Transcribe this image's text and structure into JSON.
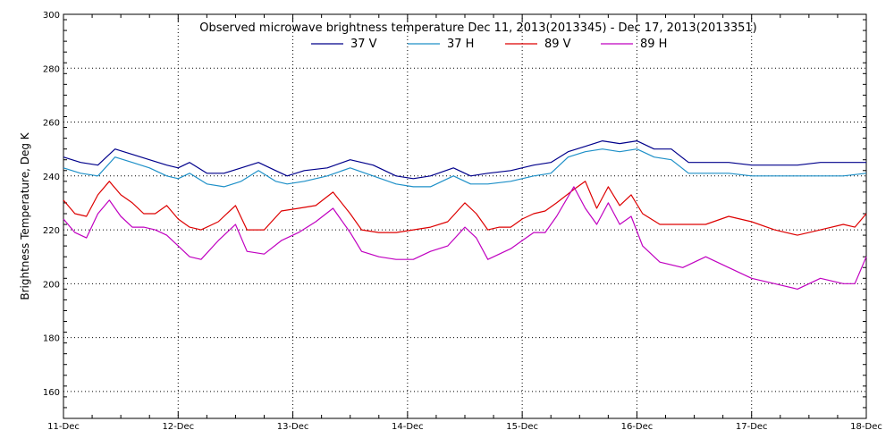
{
  "chart_data": {
    "type": "line",
    "title": "Observed microwave brightness temperature Dec 11, 2013(2013345) - Dec 17, 2013(2013351)",
    "ylabel": "Brightness Temperature, Deg K",
    "xlabel": "",
    "ylim": [
      150,
      300
    ],
    "y_ticks": [
      160,
      180,
      200,
      220,
      240,
      260,
      280,
      300
    ],
    "x_tick_labels": [
      "11-Dec",
      "12-Dec",
      "13-Dec",
      "14-Dec",
      "15-Dec",
      "16-Dec",
      "17-Dec",
      "18-Dec"
    ],
    "xlim": [
      0,
      7
    ],
    "grid": true,
    "legend_placement": "top-center",
    "series": [
      {
        "name": "37 V",
        "color": "#00008b",
        "x": [
          0,
          0.15,
          0.3,
          0.45,
          0.6,
          0.75,
          0.9,
          1.0,
          1.1,
          1.25,
          1.4,
          1.55,
          1.7,
          1.85,
          1.95,
          2.1,
          2.3,
          2.5,
          2.7,
          2.9,
          3.05,
          3.2,
          3.4,
          3.55,
          3.7,
          3.9,
          4.1,
          4.25,
          4.4,
          4.55,
          4.7,
          4.85,
          5.0,
          5.15,
          5.3,
          5.45,
          5.6,
          5.8,
          6.0,
          6.2,
          6.4,
          6.6,
          6.8,
          7.0
        ],
        "values": [
          247,
          245,
          244,
          250,
          248,
          246,
          244,
          243,
          245,
          241,
          241,
          243,
          245,
          242,
          240,
          242,
          243,
          246,
          244,
          240,
          239,
          240,
          243,
          240,
          241,
          242,
          244,
          245,
          249,
          251,
          253,
          252,
          253,
          250,
          250,
          245,
          245,
          245,
          244,
          244,
          244,
          245,
          245,
          245
        ]
      },
      {
        "name": "37 H",
        "color": "#1e90c8",
        "x": [
          0,
          0.15,
          0.3,
          0.45,
          0.6,
          0.75,
          0.9,
          1.0,
          1.1,
          1.25,
          1.4,
          1.55,
          1.7,
          1.85,
          1.95,
          2.1,
          2.3,
          2.5,
          2.7,
          2.9,
          3.05,
          3.2,
          3.4,
          3.55,
          3.7,
          3.9,
          4.1,
          4.25,
          4.4,
          4.55,
          4.7,
          4.85,
          5.0,
          5.15,
          5.3,
          5.45,
          5.6,
          5.8,
          6.0,
          6.2,
          6.4,
          6.6,
          6.8,
          7.0
        ],
        "values": [
          243,
          241,
          240,
          247,
          245,
          243,
          240,
          239,
          241,
          237,
          236,
          238,
          242,
          238,
          237,
          238,
          240,
          243,
          240,
          237,
          236,
          236,
          240,
          237,
          237,
          238,
          240,
          241,
          247,
          249,
          250,
          249,
          250,
          247,
          246,
          241,
          241,
          241,
          240,
          240,
          240,
          240,
          240,
          241
        ]
      },
      {
        "name": "89 V",
        "color": "#dd0000",
        "x": [
          0,
          0.1,
          0.2,
          0.3,
          0.4,
          0.5,
          0.6,
          0.7,
          0.8,
          0.9,
          1.0,
          1.1,
          1.2,
          1.35,
          1.5,
          1.6,
          1.75,
          1.9,
          2.05,
          2.2,
          2.35,
          2.5,
          2.6,
          2.75,
          2.9,
          3.05,
          3.2,
          3.35,
          3.5,
          3.6,
          3.7,
          3.8,
          3.9,
          4.0,
          4.1,
          4.2,
          4.3,
          4.45,
          4.55,
          4.65,
          4.75,
          4.85,
          4.95,
          5.05,
          5.2,
          5.4,
          5.6,
          5.8,
          6.0,
          6.2,
          6.4,
          6.6,
          6.8,
          6.9,
          7.0
        ],
        "values": [
          231,
          226,
          225,
          233,
          238,
          233,
          230,
          226,
          226,
          229,
          224,
          221,
          220,
          223,
          229,
          220,
          220,
          227,
          228,
          229,
          234,
          226,
          220,
          219,
          219,
          220,
          221,
          223,
          230,
          226,
          220,
          221,
          221,
          224,
          226,
          227,
          230,
          235,
          238,
          228,
          236,
          229,
          233,
          226,
          222,
          222,
          222,
          225,
          223,
          220,
          218,
          220,
          222,
          221,
          226
        ]
      },
      {
        "name": "89 H",
        "color": "#c000c0",
        "x": [
          0,
          0.1,
          0.2,
          0.3,
          0.4,
          0.5,
          0.6,
          0.7,
          0.8,
          0.9,
          1.0,
          1.1,
          1.2,
          1.35,
          1.5,
          1.6,
          1.75,
          1.9,
          2.05,
          2.2,
          2.35,
          2.5,
          2.6,
          2.75,
          2.9,
          3.05,
          3.2,
          3.35,
          3.5,
          3.6,
          3.7,
          3.8,
          3.9,
          4.0,
          4.1,
          4.2,
          4.3,
          4.45,
          4.55,
          4.65,
          4.75,
          4.85,
          4.95,
          5.05,
          5.2,
          5.4,
          5.6,
          5.8,
          6.0,
          6.2,
          6.4,
          6.6,
          6.8,
          6.9,
          7.0
        ],
        "values": [
          224,
          219,
          217,
          226,
          231,
          225,
          221,
          221,
          220,
          218,
          214,
          210,
          209,
          216,
          222,
          212,
          211,
          216,
          219,
          223,
          228,
          219,
          212,
          210,
          209,
          209,
          212,
          214,
          221,
          217,
          209,
          211,
          213,
          216,
          219,
          219,
          225,
          236,
          228,
          222,
          230,
          222,
          225,
          214,
          208,
          206,
          210,
          206,
          202,
          200,
          198,
          202,
          200,
          200,
          210
        ]
      }
    ]
  }
}
